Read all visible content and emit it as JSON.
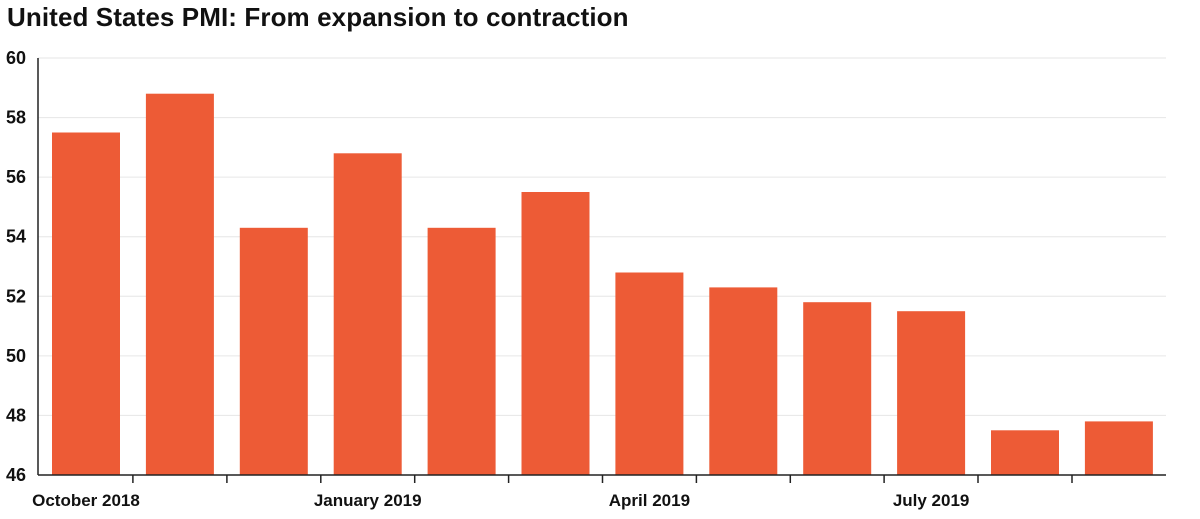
{
  "chart_data": {
    "type": "bar",
    "title": "United States PMI: From expansion to contraction",
    "xlabel": "",
    "ylabel": "",
    "categories": [
      "October 2018",
      "",
      "",
      "January 2019",
      "",
      "",
      "April 2019",
      "",
      "",
      "July 2019",
      "",
      ""
    ],
    "values": [
      57.5,
      58.8,
      54.3,
      56.8,
      54.3,
      55.5,
      52.8,
      52.3,
      51.8,
      51.5,
      47.5,
      47.8
    ],
    "ylim": [
      46,
      60
    ],
    "yticks": [
      46,
      48,
      50,
      52,
      54,
      56,
      58,
      60
    ],
    "grid": true,
    "bar_color": "#ed5b36",
    "grid_color": "#e6e6e6",
    "axis_color": "#222222"
  }
}
